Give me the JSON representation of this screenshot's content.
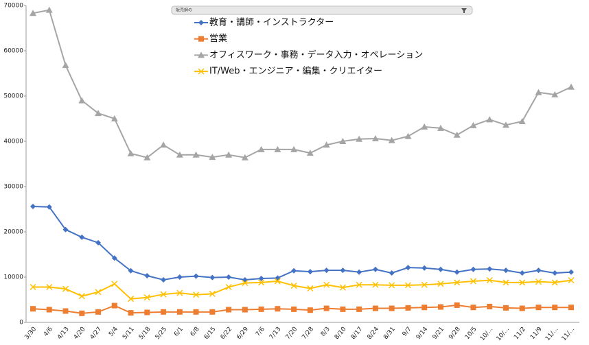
{
  "toolbar": {
    "label": "販売網の"
  },
  "chart_data": {
    "type": "line",
    "categories": [
      "3/30",
      "4/6",
      "4/13",
      "4/20",
      "4/27",
      "5/4",
      "5/11",
      "5/18",
      "5/25",
      "6/1",
      "6/8",
      "6/15",
      "6/22",
      "6/29",
      "7/6",
      "7/13",
      "7/20",
      "7/28",
      "8/3",
      "8/10",
      "8/17",
      "8/24",
      "8/31",
      "9/7",
      "9/14",
      "9/21",
      "9/28",
      "10/5",
      "10/...",
      "10/...",
      "11/2",
      "11/9",
      "11/...",
      "11/..."
    ],
    "series": [
      {
        "name": "教育・講師・インストラクター",
        "color": "#4472c4",
        "marker": "diamond",
        "values": [
          25600,
          25500,
          20500,
          18800,
          17600,
          14200,
          11400,
          10300,
          9400,
          10000,
          10200,
          9900,
          10000,
          9400,
          9700,
          9800,
          11400,
          11200,
          11500,
          11500,
          11100,
          11700,
          10900,
          12100,
          12000,
          11700,
          11100,
          11700,
          11800,
          11500,
          10900,
          11500,
          10900,
          11100
        ]
      },
      {
        "name": "営業",
        "color": "#ed7d31",
        "marker": "square",
        "values": [
          3000,
          2800,
          2500,
          2000,
          2300,
          3700,
          2100,
          2200,
          2300,
          2300,
          2300,
          2300,
          2800,
          2800,
          2900,
          3000,
          2900,
          2700,
          3100,
          2900,
          2900,
          3100,
          3100,
          3200,
          3300,
          3400,
          3800,
          3300,
          3500,
          3200,
          3100,
          3300,
          3300,
          3300
        ]
      },
      {
        "name": "オフィスワーク・事務・データ入力・オペレーション",
        "color": "#a5a5a5",
        "marker": "triangle",
        "values": [
          68300,
          69000,
          56800,
          49000,
          46200,
          45000,
          37300,
          36400,
          39200,
          37000,
          37000,
          36500,
          37000,
          36400,
          38200,
          38200,
          38200,
          37400,
          39200,
          40000,
          40500,
          40600,
          40200,
          41100,
          43200,
          42900,
          41400,
          43500,
          44800,
          43600,
          44400,
          50800,
          50300,
          52000
        ]
      },
      {
        "name": "IT/Web・エンジニア・編集・クリエイター",
        "color": "#ffc000",
        "marker": "x",
        "values": [
          7800,
          7800,
          7400,
          5800,
          6700,
          8500,
          5200,
          5500,
          6200,
          6500,
          6100,
          6300,
          7800,
          8700,
          8800,
          9100,
          8100,
          7500,
          8300,
          7700,
          8300,
          8300,
          8200,
          8200,
          8300,
          8500,
          8800,
          9100,
          9300,
          8800,
          8800,
          9000,
          8800,
          9300
        ]
      }
    ],
    "ylim": [
      0,
      70000
    ],
    "yticks": [
      0,
      10000,
      20000,
      30000,
      40000,
      50000,
      60000,
      70000
    ],
    "legend": "top"
  }
}
